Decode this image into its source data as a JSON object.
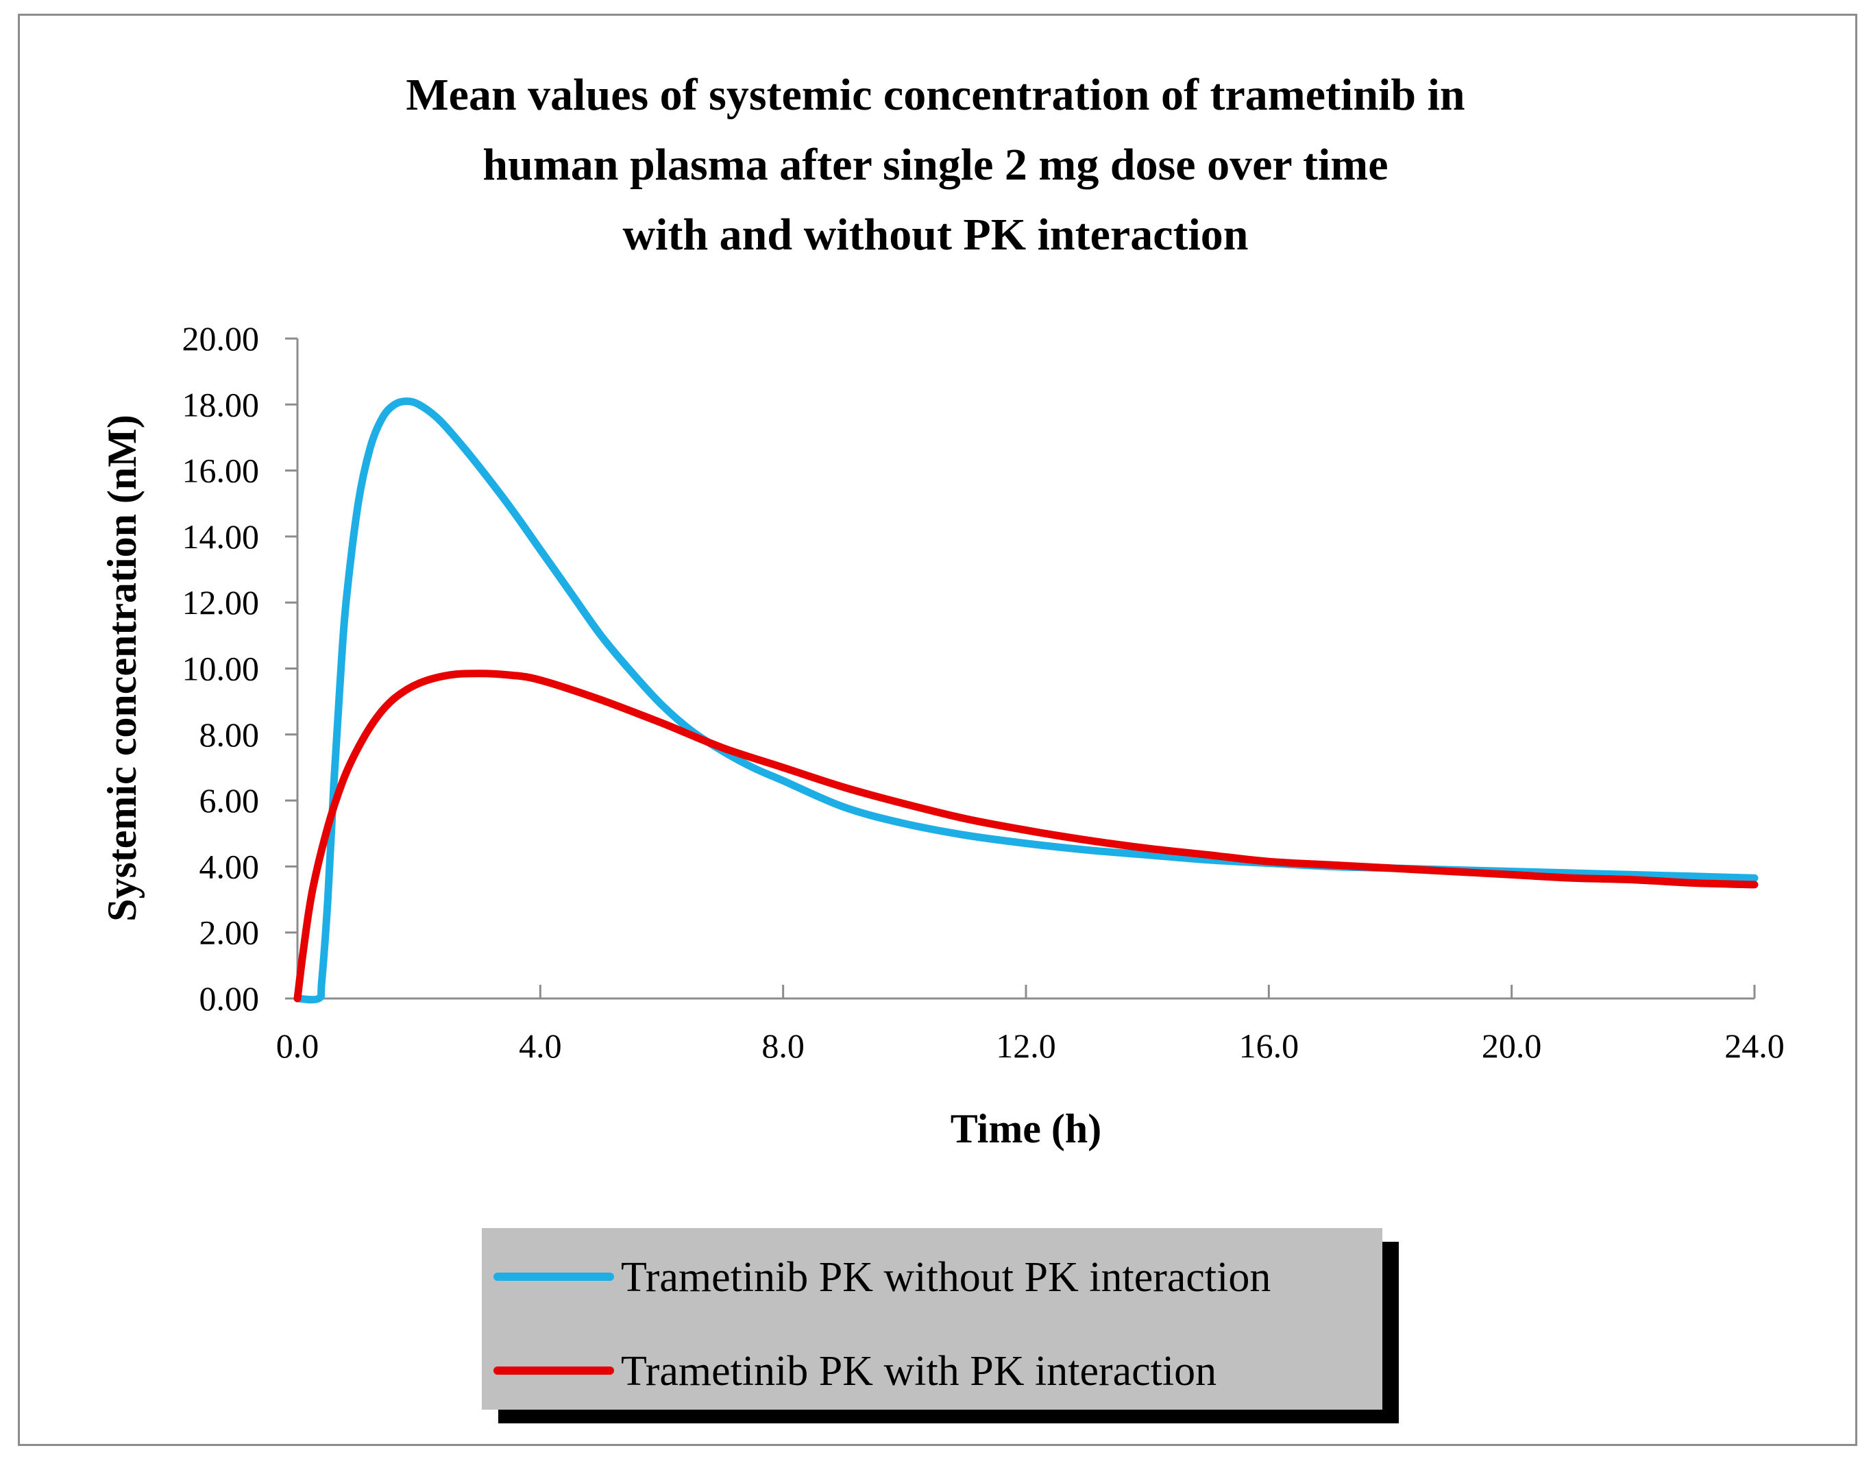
{
  "chart_data": {
    "type": "line",
    "title": [
      "Mean values of systemic concentration of trametinib in",
      "human plasma after single 2 mg dose over time",
      "with and without PK interaction"
    ],
    "xlabel": "Time (h)",
    "ylabel": "Systemic concentration (nM)",
    "xlim": [
      0,
      24
    ],
    "ylim": [
      0,
      20
    ],
    "x_ticks": [
      0,
      4,
      8,
      12,
      16,
      20,
      24
    ],
    "x_tick_labels": [
      "0.0",
      "4.0",
      "8.0",
      "12.0",
      "16.0",
      "20.0",
      "24.0"
    ],
    "y_ticks": [
      0,
      2,
      4,
      6,
      8,
      10,
      12,
      14,
      16,
      18,
      20
    ],
    "y_tick_labels": [
      "0.00",
      "2.00",
      "4.00",
      "6.00",
      "8.00",
      "10.00",
      "12.00",
      "14.00",
      "16.00",
      "18.00",
      "20.00"
    ],
    "grid": false,
    "legend_position": "bottom",
    "series": [
      {
        "name": "Trametinib PK without PK interaction",
        "color": "#1eaee6",
        "x": [
          0,
          0.35,
          0.4,
          0.5,
          0.6,
          0.7,
          0.8,
          1.0,
          1.2,
          1.4,
          1.6,
          1.8,
          2.0,
          2.3,
          2.6,
          3.0,
          3.5,
          4.0,
          4.5,
          5.0,
          5.5,
          6.0,
          6.5,
          7.0,
          7.5,
          8.0,
          9.0,
          10.0,
          11.0,
          12.0,
          13.0,
          14.0,
          15.0,
          16.0,
          17.0,
          18.0,
          19.0,
          20.0,
          21.0,
          22.0,
          23.0,
          24.0
        ],
        "y": [
          0,
          0,
          0.5,
          3.0,
          6.5,
          9.5,
          12.0,
          15.0,
          16.7,
          17.6,
          18.0,
          18.1,
          18.0,
          17.6,
          17.0,
          16.1,
          14.9,
          13.6,
          12.3,
          11.0,
          9.9,
          8.9,
          8.1,
          7.5,
          7.0,
          6.6,
          5.8,
          5.3,
          4.95,
          4.7,
          4.5,
          4.35,
          4.2,
          4.1,
          4.0,
          3.95,
          3.9,
          3.85,
          3.8,
          3.75,
          3.7,
          3.65
        ]
      },
      {
        "name": "Trametinib PK with PK interaction",
        "color": "#e60000",
        "x": [
          0,
          0.1,
          0.25,
          0.5,
          0.75,
          1.0,
          1.3,
          1.6,
          2.0,
          2.5,
          3.0,
          3.5,
          4.0,
          5.0,
          6.0,
          7.0,
          8.0,
          9.0,
          10.0,
          11.0,
          12.0,
          13.0,
          14.0,
          15.0,
          16.0,
          17.0,
          18.0,
          19.0,
          20.0,
          21.0,
          22.0,
          23.0,
          24.0
        ],
        "y": [
          0,
          1.5,
          3.3,
          5.2,
          6.6,
          7.6,
          8.5,
          9.1,
          9.55,
          9.8,
          9.85,
          9.8,
          9.65,
          9.05,
          8.35,
          7.6,
          7.0,
          6.4,
          5.9,
          5.45,
          5.1,
          4.8,
          4.55,
          4.35,
          4.15,
          4.05,
          3.95,
          3.85,
          3.75,
          3.65,
          3.6,
          3.5,
          3.45
        ]
      }
    ]
  }
}
